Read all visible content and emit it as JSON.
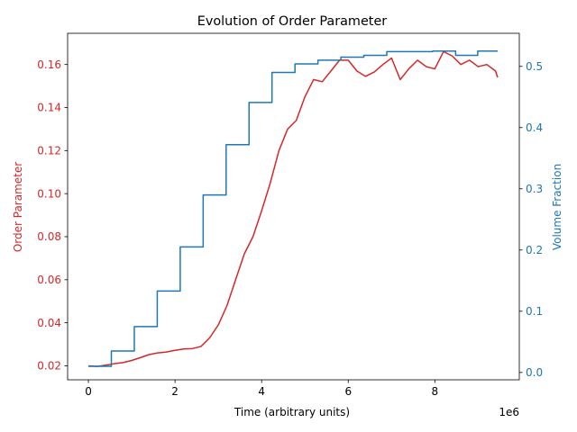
{
  "chart_data": {
    "type": "line",
    "title": "Evolution of Order Parameter",
    "xlabel": "Time (arbitrary units)",
    "x_offset_label": "1e6",
    "xlim": [
      -480000,
      9950000
    ],
    "x_ticks": [
      0,
      2000000,
      4000000,
      6000000,
      8000000
    ],
    "x_tick_labels": [
      "0",
      "2",
      "4",
      "6",
      "8"
    ],
    "left_axis": {
      "label": "Order Parameter",
      "color": "#d62728",
      "ylim": [
        0.0135,
        0.1745
      ],
      "ticks": [
        0.02,
        0.04,
        0.06,
        0.08,
        0.1,
        0.12,
        0.14,
        0.16
      ],
      "tick_labels": [
        "0.02",
        "0.04",
        "0.06",
        "0.08",
        "0.10",
        "0.12",
        "0.14",
        "0.16"
      ]
    },
    "right_axis": {
      "label": "Volume Fraction",
      "color": "#1f77b4",
      "ylim": [
        -0.012,
        0.554
      ],
      "ticks": [
        0.0,
        0.1,
        0.2,
        0.3,
        0.4,
        0.5
      ],
      "tick_labels": [
        "0.0",
        "0.1",
        "0.2",
        "0.3",
        "0.4",
        "0.5"
      ]
    },
    "series": [
      {
        "axis": "left",
        "color": "#d62728",
        "x": [
          0,
          200000,
          400000,
          600000,
          800000,
          1000000,
          1200000,
          1400000,
          1600000,
          1800000,
          2000000,
          2200000,
          2400000,
          2600000,
          2800000,
          3000000,
          3200000,
          3400000,
          3600000,
          3800000,
          4000000,
          4200000,
          4400000,
          4600000,
          4800000,
          5000000,
          5200000,
          5400000,
          5600000,
          5800000,
          6000000,
          6200000,
          6400000,
          6600000,
          6800000,
          7000000,
          7200000,
          7400000,
          7600000,
          7800000,
          8000000,
          8200000,
          8400000,
          8600000,
          8800000,
          9000000,
          9200000,
          9400000,
          9450000
        ],
        "y": [
          0.02,
          0.0197,
          0.0203,
          0.021,
          0.0215,
          0.0225,
          0.0238,
          0.0252,
          0.026,
          0.0264,
          0.0272,
          0.0278,
          0.028,
          0.029,
          0.033,
          0.039,
          0.048,
          0.06,
          0.072,
          0.08,
          0.092,
          0.105,
          0.12,
          0.13,
          0.134,
          0.145,
          0.153,
          0.152,
          0.157,
          0.162,
          0.162,
          0.157,
          0.1545,
          0.1565,
          0.16,
          0.163,
          0.153,
          0.158,
          0.162,
          0.159,
          0.158,
          0.166,
          0.164,
          0.16,
          0.162,
          0.159,
          0.16,
          0.157,
          0.154
        ]
      },
      {
        "axis": "right",
        "color": "#1f77b4",
        "step": true,
        "x": [
          0,
          530000,
          1060000,
          1590000,
          2120000,
          2650000,
          3180000,
          3710000,
          4240000,
          4770000,
          5300000,
          5830000,
          6360000,
          6890000,
          7420000,
          7950000,
          8480000,
          8990000,
          9450000
        ],
        "y": [
          0.01,
          0.035,
          0.075,
          0.133,
          0.205,
          0.29,
          0.372,
          0.441,
          0.49,
          0.504,
          0.51,
          0.515,
          0.518,
          0.524,
          0.524,
          0.525,
          0.518,
          0.525,
          0.525
        ]
      }
    ]
  }
}
